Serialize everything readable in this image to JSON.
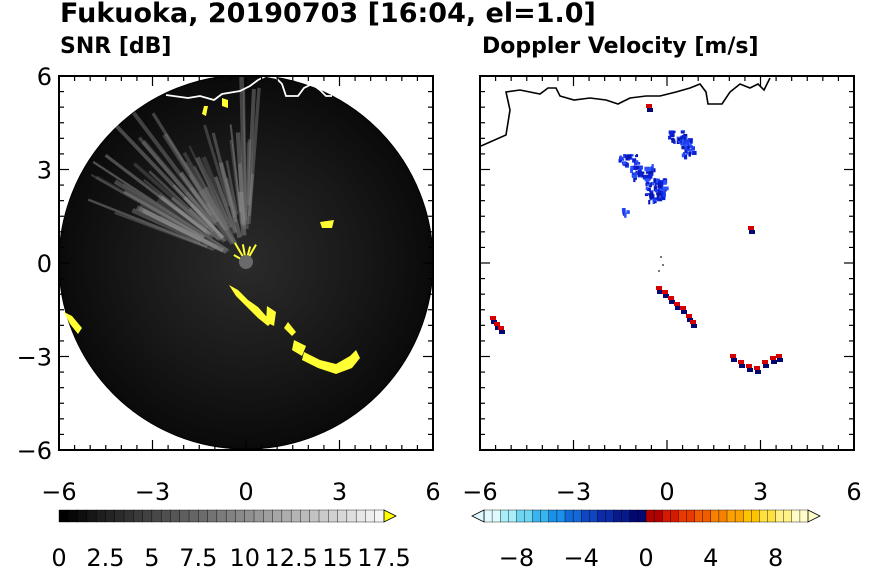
{
  "title": "Fukuoka, 20190703 [16:04, el=1.0]",
  "chart_data": [
    {
      "type": "heatmap",
      "title": "SNR [dB]",
      "xlim": [
        -6,
        6
      ],
      "ylim": [
        -6,
        6
      ],
      "x_ticks": [
        "−6",
        "−3",
        "0",
        "3",
        "6"
      ],
      "y_ticks": [
        "6",
        "3",
        "0",
        "−3",
        "−6"
      ],
      "colorbar": {
        "range": [
          0,
          17.5
        ],
        "extend": "max",
        "tick_labels": [
          "0",
          "2.5",
          "5",
          "7.5",
          "10",
          "12.5",
          "15",
          "17.5"
        ],
        "colors": [
          "#000000",
          "#ffffff",
          "#ffff00"
        ]
      }
    },
    {
      "type": "heatmap",
      "title": "Doppler Velocity [m/s]",
      "xlim": [
        -6,
        6
      ],
      "ylim": [
        -6,
        6
      ],
      "x_ticks": [
        "−6",
        "−3",
        "0",
        "3",
        "6"
      ],
      "y_ticks": [],
      "colorbar": {
        "range": [
          -10,
          10
        ],
        "extend": "both",
        "tick_labels": [
          "−8",
          "−4",
          "0",
          "4",
          "8"
        ],
        "colors": [
          "#c8f8ff",
          "#2a9bff",
          "#000080",
          "#d40000",
          "#ff8800",
          "#ffffa0"
        ]
      }
    }
  ]
}
